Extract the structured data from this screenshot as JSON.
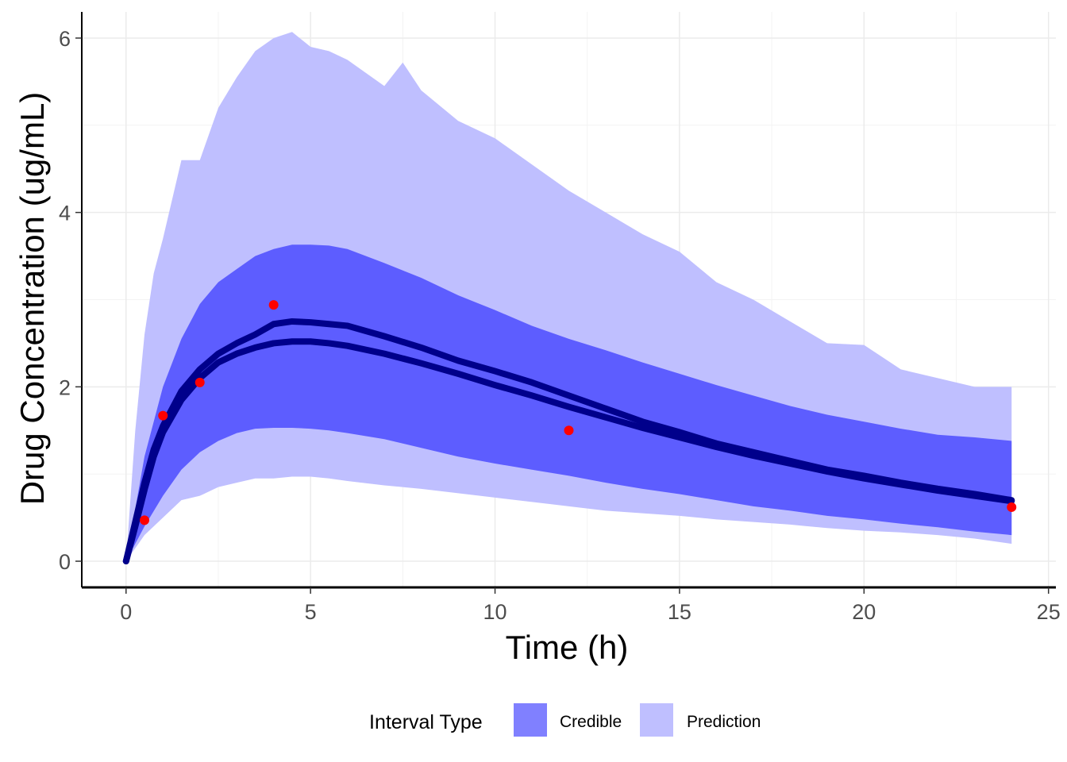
{
  "chart_data": {
    "type": "area",
    "title": "",
    "xlabel": "Time (h)",
    "ylabel": "Drug Concentration (ug/mL)",
    "xlim": [
      -1.2,
      25.2
    ],
    "ylim": [
      -0.3,
      6.3
    ],
    "x_ticks": [
      0,
      5,
      10,
      15,
      20,
      25
    ],
    "y_ticks": [
      0,
      2,
      4,
      6
    ],
    "x_tick_labels": [
      "0",
      "5",
      "10",
      "15",
      "20",
      "25"
    ],
    "y_tick_labels": [
      "0",
      "2",
      "4",
      "6"
    ],
    "grid": true,
    "legend_position": "bottom",
    "legend": {
      "title": "Interval Type",
      "entries": [
        {
          "label": "Credible",
          "color": "#8080ff"
        },
        {
          "label": "Prediction",
          "color": "#bfbfff"
        }
      ]
    },
    "colors": {
      "prediction_band": "#bfbfff",
      "credible_band": "#5d5dff",
      "lines": "#00008b",
      "observed": "#ff0000",
      "grid_major": "#ebebeb",
      "grid_minor": "#f3f3f3",
      "axis": "#000000"
    },
    "prediction_interval": {
      "x": [
        0,
        0.25,
        0.5,
        0.75,
        1,
        1.5,
        2,
        2.5,
        3,
        3.5,
        4,
        4.5,
        5,
        5.5,
        6,
        7,
        7.5,
        8,
        9,
        10,
        11,
        12,
        13,
        14,
        15,
        16,
        17,
        18,
        19,
        20,
        21,
        22,
        23,
        24
      ],
      "upper": [
        0,
        1.5,
        2.6,
        3.3,
        3.7,
        4.6,
        4.6,
        5.2,
        5.55,
        5.85,
        6.0,
        6.07,
        5.9,
        5.85,
        5.75,
        5.45,
        5.72,
        5.4,
        5.05,
        4.85,
        4.55,
        4.25,
        4.0,
        3.75,
        3.55,
        3.2,
        3.0,
        2.75,
        2.5,
        2.48,
        2.2,
        2.1,
        2.0,
        2.0
      ],
      "lower": [
        0,
        0.15,
        0.3,
        0.4,
        0.5,
        0.7,
        0.75,
        0.85,
        0.9,
        0.95,
        0.95,
        0.97,
        0.97,
        0.95,
        0.92,
        0.87,
        0.85,
        0.83,
        0.78,
        0.73,
        0.68,
        0.63,
        0.58,
        0.55,
        0.52,
        0.48,
        0.45,
        0.42,
        0.38,
        0.35,
        0.33,
        0.3,
        0.26,
        0.2
      ]
    },
    "credible_interval": {
      "x": [
        0,
        0.5,
        1,
        1.5,
        2,
        2.5,
        3,
        3.5,
        4,
        4.5,
        5,
        5.5,
        6,
        7,
        8,
        9,
        10,
        11,
        12,
        13,
        14,
        15,
        16,
        17,
        18,
        19,
        20,
        21,
        22,
        23,
        24
      ],
      "upper": [
        0,
        1.2,
        2.0,
        2.55,
        2.95,
        3.2,
        3.35,
        3.5,
        3.58,
        3.63,
        3.63,
        3.62,
        3.58,
        3.42,
        3.25,
        3.05,
        2.88,
        2.7,
        2.55,
        2.42,
        2.28,
        2.15,
        2.02,
        1.9,
        1.78,
        1.68,
        1.6,
        1.52,
        1.45,
        1.42,
        1.38
      ],
      "lower": [
        0,
        0.4,
        0.75,
        1.05,
        1.25,
        1.38,
        1.47,
        1.52,
        1.53,
        1.53,
        1.52,
        1.5,
        1.47,
        1.4,
        1.3,
        1.2,
        1.12,
        1.05,
        0.98,
        0.9,
        0.83,
        0.77,
        0.7,
        0.63,
        0.58,
        0.52,
        0.48,
        0.43,
        0.39,
        0.34,
        0.3
      ]
    },
    "series": [
      {
        "x": [
          0,
          0.25,
          0.5,
          0.75,
          1,
          1.5,
          2,
          2.5,
          3,
          3.5,
          4,
          4.5,
          5,
          5.5,
          6,
          7,
          8,
          9,
          10,
          11,
          12,
          13,
          14,
          15,
          16,
          17,
          18,
          19,
          20,
          21,
          22,
          23,
          24
        ],
        "values": [
          0,
          0.45,
          0.9,
          1.28,
          1.55,
          1.95,
          2.2,
          2.38,
          2.5,
          2.6,
          2.72,
          2.75,
          2.74,
          2.72,
          2.7,
          2.58,
          2.45,
          2.3,
          2.18,
          2.05,
          1.9,
          1.75,
          1.6,
          1.48,
          1.35,
          1.25,
          1.15,
          1.05,
          0.98,
          0.9,
          0.83,
          0.77,
          0.7
        ]
      },
      {
        "x": [
          0,
          0.25,
          0.5,
          0.75,
          1,
          1.5,
          2,
          2.5,
          3,
          3.5,
          4,
          4.5,
          5,
          5.5,
          6,
          7,
          8,
          9,
          10,
          11,
          12,
          13,
          14,
          15,
          16,
          17,
          18,
          19,
          20,
          21,
          22,
          23,
          24
        ],
        "values": [
          0,
          0.4,
          0.82,
          1.2,
          1.48,
          1.85,
          2.1,
          2.28,
          2.38,
          2.45,
          2.5,
          2.52,
          2.52,
          2.5,
          2.47,
          2.38,
          2.27,
          2.15,
          2.02,
          1.9,
          1.77,
          1.65,
          1.53,
          1.42,
          1.31,
          1.21,
          1.12,
          1.03,
          0.95,
          0.88,
          0.81,
          0.75,
          0.69
        ]
      }
    ],
    "observed_points": {
      "x": [
        0.5,
        1,
        2,
        4,
        12,
        24
      ],
      "y": [
        0.47,
        1.67,
        2.05,
        2.94,
        1.5,
        0.62
      ]
    }
  }
}
